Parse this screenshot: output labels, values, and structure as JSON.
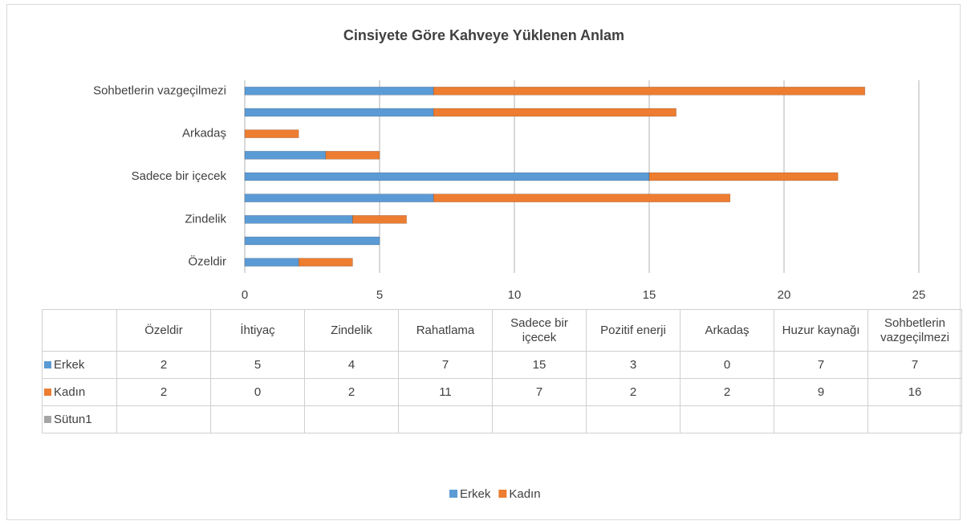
{
  "chart_data": {
    "type": "bar",
    "orientation": "horizontal",
    "stacked": true,
    "title": "Cinsiyete Göre Kahveye Yüklenen Anlam",
    "categories": [
      "Özeldir",
      "İhtiyaç",
      "Zindelik",
      "Rahatlama",
      "Sadece bir içecek",
      "Pozitif enerji",
      "Arkadaş",
      "Huzur kaynağı",
      "Sohbetlerin vazgeçilmezi"
    ],
    "series": [
      {
        "name": "Erkek",
        "color": "#5b9bd5",
        "values": [
          2,
          5,
          4,
          7,
          15,
          3,
          0,
          7,
          7
        ]
      },
      {
        "name": "Kadın",
        "color": "#ed7d31",
        "values": [
          2,
          0,
          2,
          11,
          7,
          2,
          2,
          9,
          16
        ]
      },
      {
        "name": "Sütun1",
        "color": "#a5a5a5",
        "values": [
          null,
          null,
          null,
          null,
          null,
          null,
          null,
          null,
          null
        ]
      }
    ],
    "xlim": [
      0,
      25
    ],
    "xticks": [
      0,
      5,
      10,
      15,
      20,
      25
    ],
    "grid": true,
    "legend": "bottom"
  }
}
